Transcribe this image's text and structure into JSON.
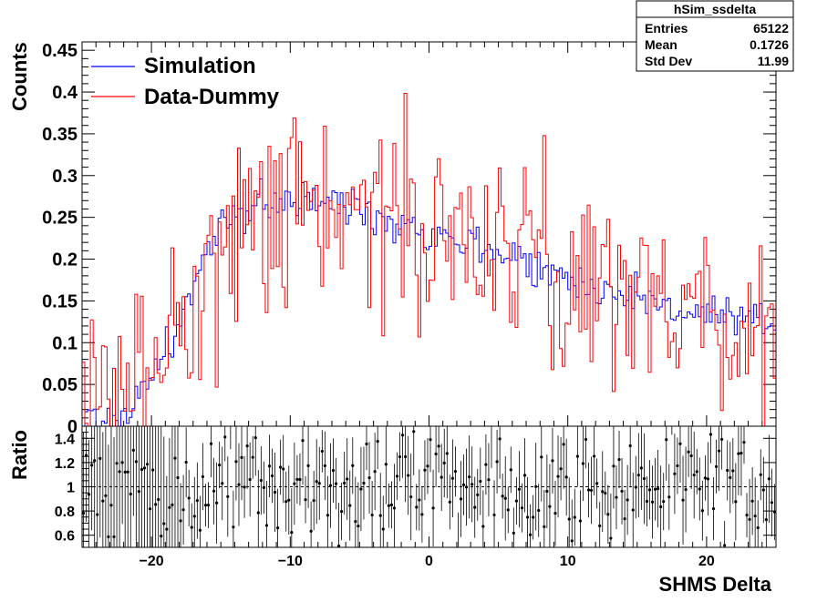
{
  "chart_data": [
    {
      "type": "histogram",
      "panel": "top",
      "xlim": [
        -25,
        25
      ],
      "ylim": [
        0,
        0.46
      ],
      "ylabel": "Counts",
      "yticks": [
        0,
        0.05,
        0.1,
        0.15,
        0.2,
        0.25,
        0.3,
        0.35,
        0.4,
        0.45
      ],
      "ytick_labels": [
        "0",
        "0.05",
        "0.1",
        "0.15",
        "0.2",
        "0.25",
        "0.3",
        "0.35",
        "0.4",
        "0.45"
      ],
      "legend": {
        "placement": "top-left",
        "entries": [
          {
            "label": "Simulation",
            "color": "#0000ff"
          },
          {
            "label": "Data-Dummy",
            "color": "#ff0000"
          }
        ]
      },
      "stats_box": {
        "title": "hSim_ssdelta",
        "rows": [
          {
            "label": "Entries",
            "value": "65122"
          },
          {
            "label": "Mean",
            "value": "0.1726"
          },
          {
            "label": "Std Dev",
            "value": "11.99"
          }
        ]
      },
      "series": [
        {
          "name": "Simulation",
          "color": "#0000ff",
          "profile": [
            [
              -25,
              0.005
            ],
            [
              -22,
              0.01
            ],
            [
              -20,
              0.06
            ],
            [
              -18,
              0.12
            ],
            [
              -16,
              0.21
            ],
            [
              -14,
              0.25
            ],
            [
              -12,
              0.27
            ],
            [
              -10,
              0.27
            ],
            [
              -6,
              0.265
            ],
            [
              -2,
              0.245
            ],
            [
              2,
              0.225
            ],
            [
              6,
              0.205
            ],
            [
              10,
              0.175
            ],
            [
              14,
              0.16
            ],
            [
              18,
              0.14
            ],
            [
              22,
              0.125
            ],
            [
              25,
              0.12
            ]
          ],
          "noise": 0.012
        },
        {
          "name": "Data-Dummy",
          "color": "#ff0000",
          "profile": [
            [
              -25,
              0.01
            ],
            [
              -22,
              0.03
            ],
            [
              -20,
              0.07
            ],
            [
              -18,
              0.13
            ],
            [
              -16,
              0.2
            ],
            [
              -14,
              0.25
            ],
            [
              -12,
              0.265
            ],
            [
              -10,
              0.265
            ],
            [
              -6,
              0.26
            ],
            [
              -2,
              0.25
            ],
            [
              2,
              0.23
            ],
            [
              6,
              0.21
            ],
            [
              10,
              0.18
            ],
            [
              14,
              0.165
            ],
            [
              18,
              0.145
            ],
            [
              22,
              0.125
            ],
            [
              25,
              0.115
            ]
          ],
          "noise": 0.06,
          "nbins": 250
        }
      ]
    },
    {
      "type": "scatter",
      "panel": "bottom",
      "xlim": [
        -25,
        25
      ],
      "ylim": [
        0.5,
        1.5
      ],
      "xlabel": "SHMS Delta",
      "ylabel": "Ratio",
      "xticks": [
        -20,
        -10,
        0,
        10,
        20
      ],
      "xtick_labels": [
        "−20",
        "−10",
        "0",
        "10",
        "20"
      ],
      "yticks": [
        0.6,
        0.8,
        1,
        1.2,
        1.4
      ],
      "ytick_labels": [
        "0.6",
        "0.8",
        "1",
        "1.2",
        "1.4"
      ],
      "reference_line": 1,
      "points": {
        "nbins": 250,
        "center": 1.0,
        "spread": 0.22,
        "error": 0.25
      }
    }
  ]
}
